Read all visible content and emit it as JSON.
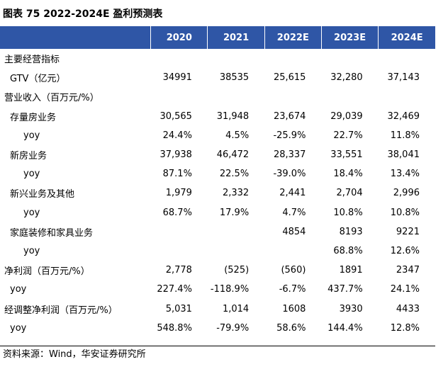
{
  "title": "图表 75 2022-2024E 盈利预测表",
  "header": {
    "label": "",
    "years": [
      "2020",
      "2021",
      "2022E",
      "2023E",
      "2024E"
    ]
  },
  "rows": [
    {
      "label": "主要经营指标",
      "indent": 0,
      "values": [
        "",
        "",
        "",
        "",
        ""
      ]
    },
    {
      "label": "GTV（亿元）",
      "indent": 1,
      "values": [
        "34991",
        "38535",
        "25,615",
        "32,280",
        "37,143"
      ]
    },
    {
      "label": "营业收入（百万元/%）",
      "indent": 0,
      "values": [
        "",
        "",
        "",
        "",
        ""
      ]
    },
    {
      "label": "存量房业务",
      "indent": 1,
      "values": [
        "30,565",
        "31,948",
        "23,674",
        "29,039",
        "32,469"
      ]
    },
    {
      "label": "yoy",
      "indent": 2,
      "values": [
        "24.4%",
        "4.5%",
        "-25.9%",
        "22.7%",
        "11.8%"
      ]
    },
    {
      "label": "新房业务",
      "indent": 1,
      "values": [
        "37,938",
        "46,472",
        "28,337",
        "33,551",
        "38,041"
      ]
    },
    {
      "label": "yoy",
      "indent": 2,
      "values": [
        "87.1%",
        "22.5%",
        "-39.0%",
        "18.4%",
        "13.4%"
      ]
    },
    {
      "label": "新兴业务及其他",
      "indent": 1,
      "values": [
        "1,979",
        "2,332",
        "2,441",
        "2,704",
        "2,996"
      ]
    },
    {
      "label": "yoy",
      "indent": 2,
      "values": [
        "68.7%",
        "17.9%",
        "4.7%",
        "10.8%",
        "10.8%"
      ]
    },
    {
      "label": "家庭装修和家具业务",
      "indent": 1,
      "values": [
        "",
        "",
        "4854",
        "8193",
        "9221"
      ]
    },
    {
      "label": "yoy",
      "indent": 2,
      "values": [
        "",
        "",
        "",
        "68.8%",
        "12.6%"
      ]
    },
    {
      "label": "净利润（百万元/%）",
      "indent": 0,
      "values": [
        "2,778",
        "(525)",
        "(560)",
        "1891",
        "2347"
      ]
    },
    {
      "label": "yoy",
      "indent": 1,
      "values": [
        "227.4%",
        "-118.9%",
        "-6.7%",
        "437.7%",
        "24.1%"
      ]
    },
    {
      "label": "经调整净利润（百万元/%）",
      "indent": 0,
      "values": [
        "5,031",
        "1,014",
        "1608",
        "3930",
        "4433"
      ]
    },
    {
      "label": "yoy",
      "indent": 1,
      "values": [
        "548.8%",
        "-79.9%",
        "58.6%",
        "144.4%",
        "12.8%"
      ]
    }
  ],
  "source": "资料来源：Wind，华安证券研究所",
  "colors": {
    "header_bg": "#2f56a6",
    "header_text": "#ffffff"
  }
}
